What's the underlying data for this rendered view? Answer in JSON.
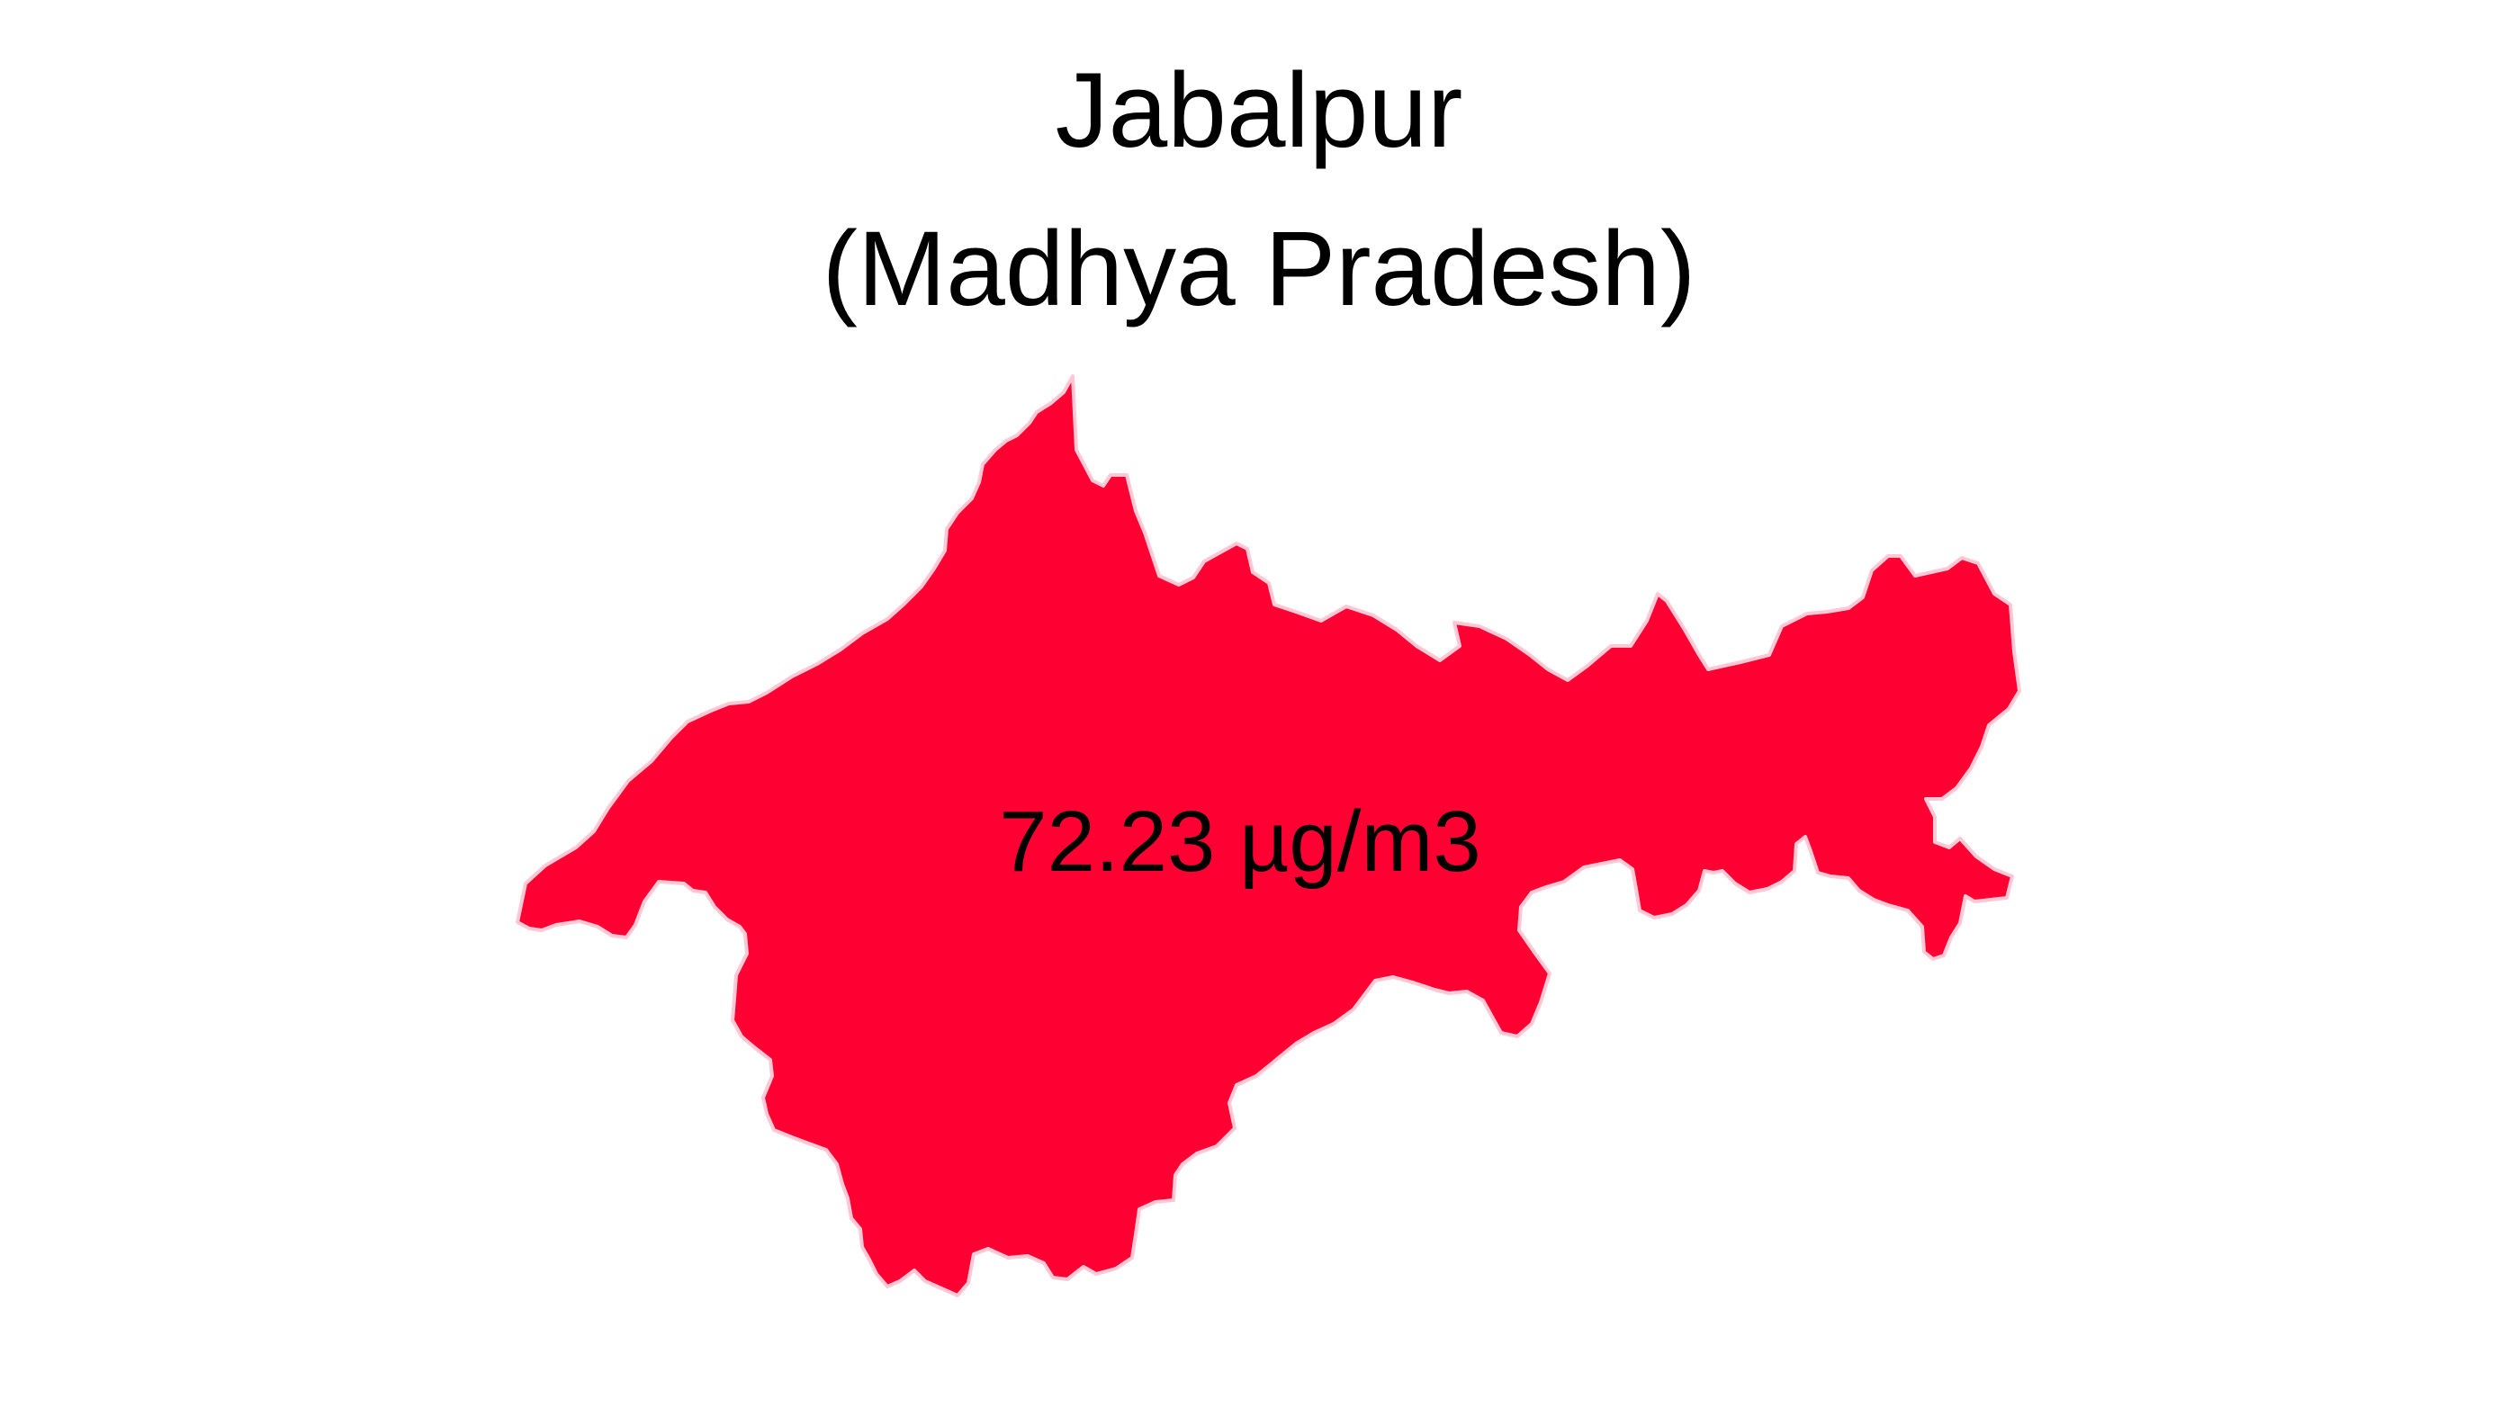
{
  "title": {
    "line1": "Jabalpur",
    "line2": "(Madhya Pradesh)"
  },
  "map": {
    "region_name": "Jabalpur",
    "state": "Madhya Pradesh",
    "value_label": "72.23 µg/m3",
    "value": 72.23,
    "unit": "µg/m3",
    "fill_color": "#ff0033",
    "outline_color": "#ffc8d4",
    "background_color": "#ffffff"
  }
}
